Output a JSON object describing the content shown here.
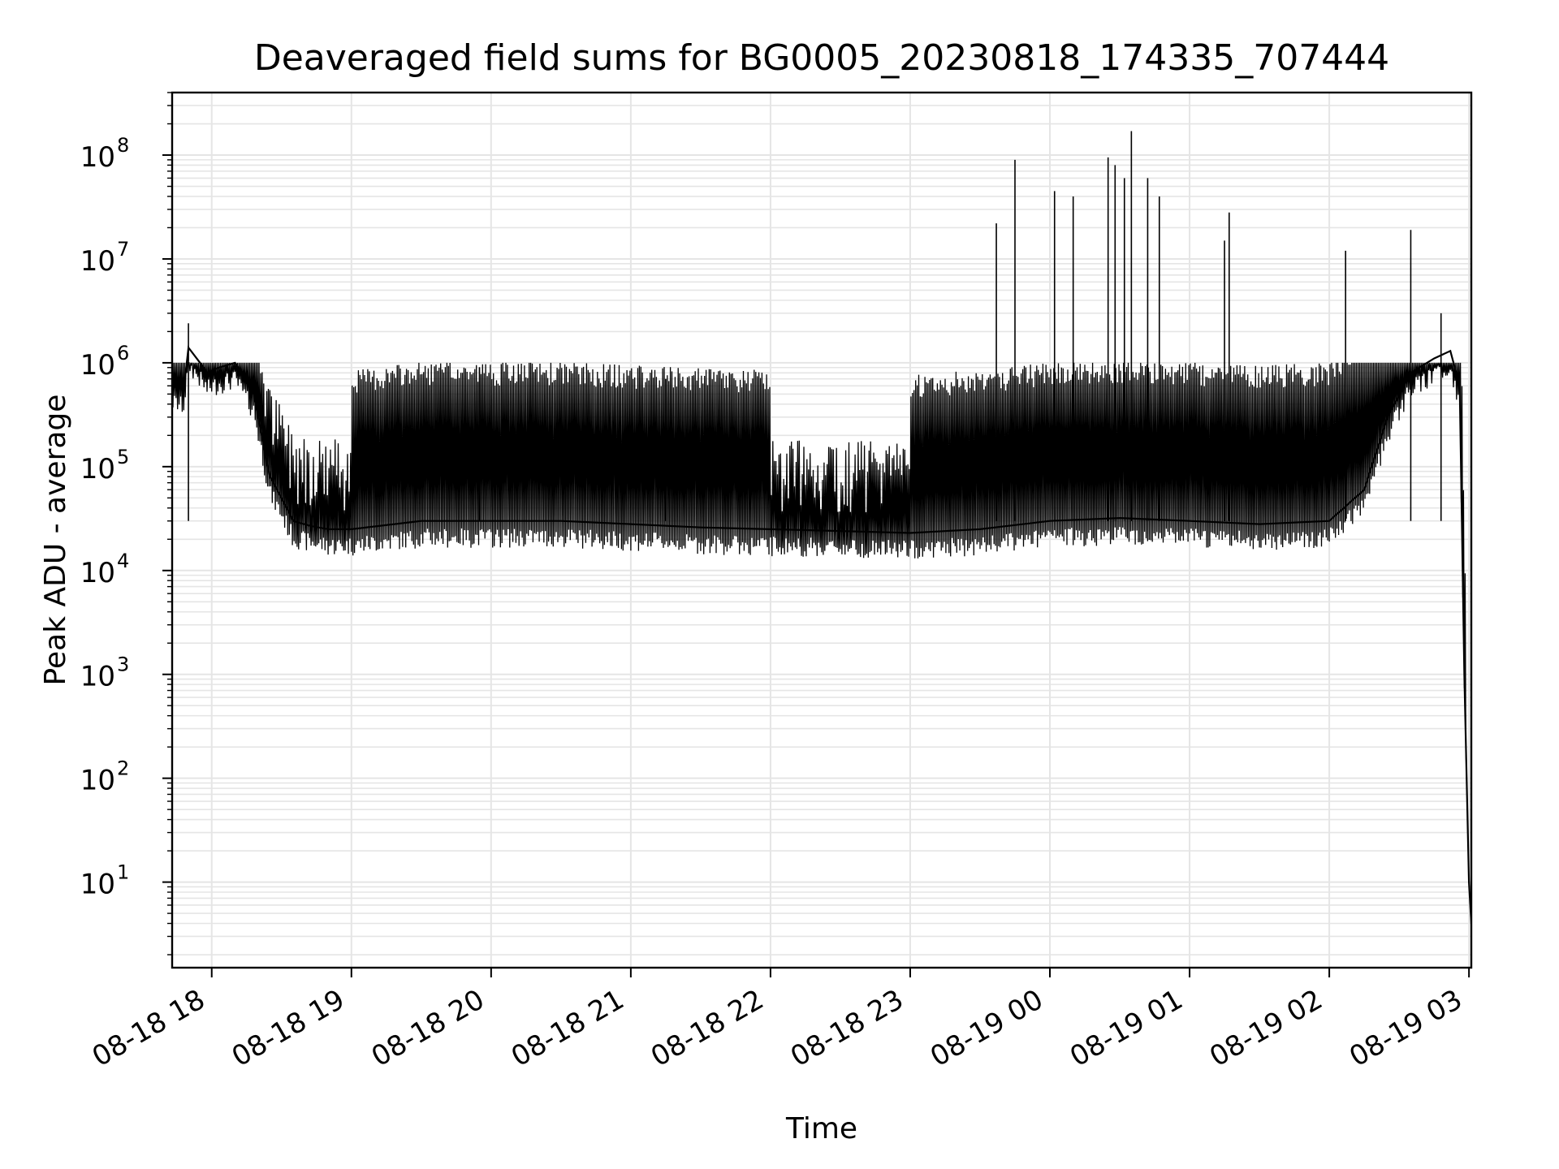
{
  "chart_data": {
    "type": "line",
    "title": "Deaveraged field sums for BG0005_20230818_174335_707444",
    "xlabel": "Time",
    "ylabel": "Peak ADU - average",
    "yscale": "log",
    "xlim": [
      "2023-08-18 17:43",
      "2023-08-19 03:01"
    ],
    "ylim": [
      1.5,
      400000000
    ],
    "grid": true,
    "line_color": "#000000",
    "grid_color": "#e5e5e5",
    "x_ticks": [
      {
        "at": "2023-08-18 18:00",
        "label": "08-18 18"
      },
      {
        "at": "2023-08-18 19:00",
        "label": "08-18 19"
      },
      {
        "at": "2023-08-18 20:00",
        "label": "08-18 20"
      },
      {
        "at": "2023-08-18 21:00",
        "label": "08-18 21"
      },
      {
        "at": "2023-08-18 22:00",
        "label": "08-18 22"
      },
      {
        "at": "2023-08-18 23:00",
        "label": "08-18 23"
      },
      {
        "at": "2023-08-19 00:00",
        "label": "08-19 00"
      },
      {
        "at": "2023-08-19 01:00",
        "label": "08-19 01"
      },
      {
        "at": "2023-08-19 02:00",
        "label": "08-19 02"
      },
      {
        "at": "2023-08-19 03:00",
        "label": "08-19 03"
      }
    ],
    "y_ticks": [
      {
        "value": 10,
        "base": "10",
        "exp": "1"
      },
      {
        "value": 100,
        "base": "10",
        "exp": "2"
      },
      {
        "value": 1000,
        "base": "10",
        "exp": "3"
      },
      {
        "value": 10000,
        "base": "10",
        "exp": "4"
      },
      {
        "value": 100000,
        "base": "10",
        "exp": "5"
      },
      {
        "value": 1000000,
        "base": "10",
        "exp": "6"
      },
      {
        "value": 10000000,
        "base": "10",
        "exp": "7"
      },
      {
        "value": 100000000,
        "base": "10",
        "exp": "8"
      }
    ],
    "series": [
      {
        "x": [
          "2023-08-18 17:43",
          "2023-08-18 17:48",
          "2023-08-18 17:50",
          "2023-08-18 17:55",
          "2023-08-18 17:58",
          "2023-08-18 18:03",
          "2023-08-18 18:10",
          "2023-08-18 18:18",
          "2023-08-18 18:25",
          "2023-08-18 18:30",
          "2023-08-18 18:35",
          "2023-08-18 18:42",
          "2023-08-18 18:50",
          "2023-08-18 19:00",
          "2023-08-18 19:30",
          "2023-08-18 20:00",
          "2023-08-18 20:30",
          "2023-08-18 21:00",
          "2023-08-18 21:30",
          "2023-08-18 22:00",
          "2023-08-18 22:30",
          "2023-08-18 23:00",
          "2023-08-18 23:30",
          "2023-08-19 00:00",
          "2023-08-19 00:30",
          "2023-08-19 01:00",
          "2023-08-19 01:30",
          "2023-08-19 02:00",
          "2023-08-19 02:15",
          "2023-08-19 02:25",
          "2023-08-19 02:35",
          "2023-08-19 02:45",
          "2023-08-19 02:52",
          "2023-08-19 02:56",
          "2023-08-19 02:58",
          "2023-08-19 03:00",
          "2023-08-19 03:01"
        ],
        "y": [
          600000,
          550000,
          1400000,
          1000000,
          800000,
          900000,
          1000000,
          500000,
          80000,
          50000,
          30000,
          27000,
          25000,
          25000,
          30000,
          30000,
          30000,
          28000,
          26000,
          25000,
          24000,
          23000,
          25000,
          30000,
          32000,
          30000,
          28000,
          30000,
          60000,
          300000,
          800000,
          1100000,
          1300000,
          600000,
          1000,
          10,
          4
        ]
      }
    ],
    "spikes": [
      {
        "x": "2023-08-18 17:50",
        "y": 2400000
      },
      {
        "x": "2023-08-18 19:55",
        "y": 900000
      },
      {
        "x": "2023-08-18 21:15",
        "y": 700000
      },
      {
        "x": "2023-08-18 23:37",
        "y": 22000000
      },
      {
        "x": "2023-08-18 23:45",
        "y": 90000000
      },
      {
        "x": "2023-08-19 00:02",
        "y": 45000000
      },
      {
        "x": "2023-08-19 00:10",
        "y": 40000000
      },
      {
        "x": "2023-08-19 00:25",
        "y": 95000000
      },
      {
        "x": "2023-08-19 00:28",
        "y": 80000000
      },
      {
        "x": "2023-08-19 00:32",
        "y": 60000000
      },
      {
        "x": "2023-08-19 00:35",
        "y": 170000000
      },
      {
        "x": "2023-08-19 00:42",
        "y": 60000000
      },
      {
        "x": "2023-08-19 00:47",
        "y": 40000000
      },
      {
        "x": "2023-08-19 01:17",
        "y": 28000000
      },
      {
        "x": "2023-08-19 01:15",
        "y": 15000000
      },
      {
        "x": "2023-08-19 02:07",
        "y": 12000000
      },
      {
        "x": "2023-08-19 02:35",
        "y": 19000000
      },
      {
        "x": "2023-08-19 02:48",
        "y": 3000000
      }
    ]
  }
}
